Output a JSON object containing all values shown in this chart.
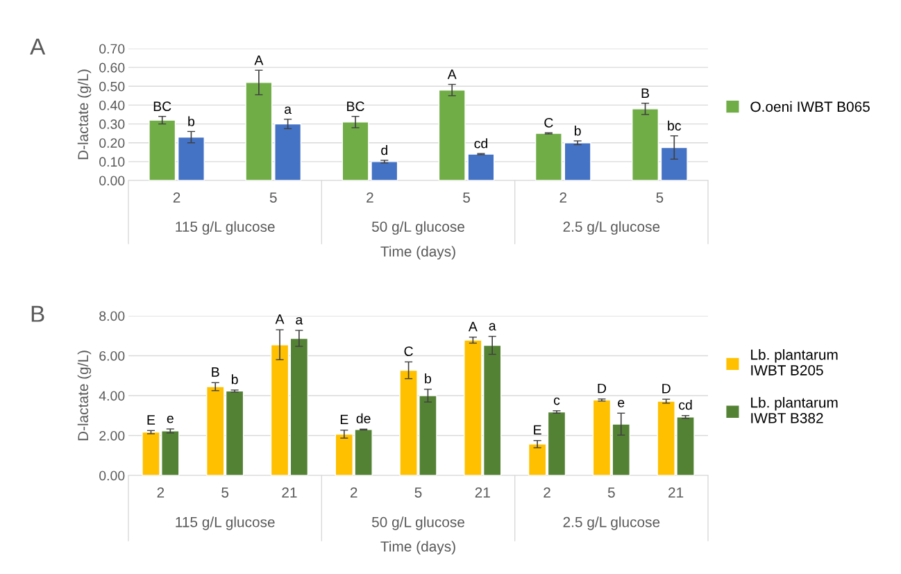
{
  "chart_data": [
    {
      "type": "bar",
      "xlabel": "Time (days)",
      "ylabel": "D-lactate (g/L)",
      "categories": [
        "2",
        "5",
        "2",
        "5",
        "2",
        "5"
      ],
      "series": [
        {
          "name": "O.oeni IWBT B065",
          "color": "#70ad47",
          "values": [
            0.32,
            0.52,
            0.31,
            0.48,
            0.25,
            0.38
          ],
          "errors": [
            0.02,
            0.065,
            0.03,
            0.03,
            0.003,
            0.03
          ],
          "value_labels": [
            "BC",
            "A",
            "BC",
            "A",
            "C",
            "B"
          ]
        },
        {
          "color": "#4472c4",
          "values": [
            0.23,
            0.3,
            0.1,
            0.14,
            0.2,
            0.175
          ],
          "errors": [
            0.03,
            0.025,
            0.007,
            0.003,
            0.01,
            0.062
          ],
          "value_labels": [
            "b",
            "a",
            "d",
            "cd",
            "b",
            "bc"
          ]
        }
      ],
      "ylim": [
        0,
        0.7
      ],
      "yticks": [
        {
          "value": 0,
          "label": "0.00"
        },
        {
          "value": 0.1,
          "label": "0.10"
        },
        {
          "value": 0.2,
          "label": "0.20"
        },
        {
          "value": 0.3,
          "label": "0.30"
        },
        {
          "value": 0.4,
          "label": "0.40"
        },
        {
          "value": 0.5,
          "label": "0.50"
        },
        {
          "value": 0.6,
          "label": "0.60"
        },
        {
          "value": 0.7,
          "label": "0.70"
        }
      ],
      "grid": "y",
      "legend": "right",
      "annotations": [
        "A",
        "115 g/L glucose",
        "50 g/L glucose",
        "2.5 g/L glucose"
      ]
    },
    {
      "type": "bar",
      "xlabel": "Time (days)",
      "ylabel": "D-lactate (g/L)",
      "categories": [
        "2",
        "5",
        "21",
        "2",
        "5",
        "21",
        "2",
        "5",
        "21"
      ],
      "series": [
        {
          "name": "Lb. plantarum\nIWBT B205",
          "color": "#ffc000",
          "values": [
            2.17,
            4.45,
            6.55,
            2.07,
            5.27,
            6.78,
            1.57,
            3.78,
            3.72
          ],
          "errors": [
            0.08,
            0.2,
            0.75,
            0.2,
            0.42,
            0.15,
            0.18,
            0.05,
            0.1
          ],
          "value_labels": [
            "E",
            "B",
            "A",
            "E",
            "C",
            "A",
            "E",
            "D",
            "D"
          ]
        },
        {
          "name": "Lb. plantarum\nIWBT B382",
          "color": "#548235",
          "values": [
            2.23,
            4.23,
            6.87,
            2.3,
            4.0,
            6.52,
            3.18,
            2.57,
            2.93
          ],
          "errors": [
            0.1,
            0.05,
            0.4,
            0.02,
            0.32,
            0.45,
            0.06,
            0.55,
            0.07
          ],
          "value_labels": [
            "e",
            "b",
            "a",
            "de",
            "b",
            "a",
            "c",
            "e",
            "cd"
          ]
        }
      ],
      "ylim": [
        0,
        8
      ],
      "yticks": [
        {
          "value": 0,
          "label": "0.00"
        },
        {
          "value": 2,
          "label": "2.00"
        },
        {
          "value": 4,
          "label": "4.00"
        },
        {
          "value": 6,
          "label": "6.00"
        },
        {
          "value": 8,
          "label": "8.00"
        }
      ],
      "grid": "y",
      "legend": "right",
      "annotations": [
        "B",
        "115 g/L glucose",
        "50 g/L glucose",
        "2.5 g/L glucose"
      ]
    }
  ]
}
